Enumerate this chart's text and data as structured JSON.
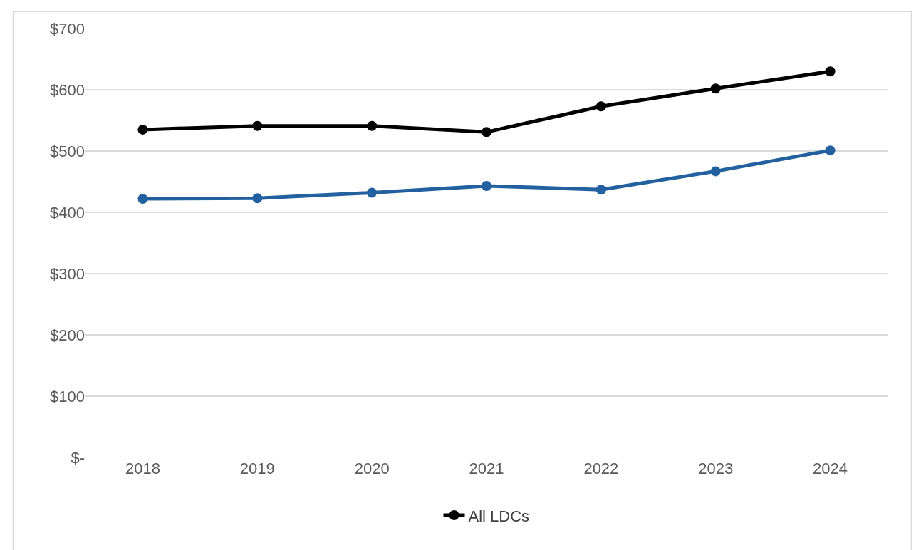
{
  "chart_data": {
    "type": "line",
    "categories": [
      "2018",
      "2019",
      "2020",
      "2021",
      "2022",
      "2023",
      "2024"
    ],
    "series": [
      {
        "name": "All LDCs",
        "color": "#000000",
        "values": [
          535,
          541,
          541,
          531,
          573,
          602,
          630
        ]
      },
      {
        "color": "#2360a0",
        "values": [
          422,
          423,
          432,
          443,
          437,
          467,
          501
        ]
      }
    ],
    "ylim": [
      0,
      700
    ],
    "yticks": [
      {
        "value": 0,
        "label": "$-"
      },
      {
        "value": 100,
        "label": "$100"
      },
      {
        "value": 200,
        "label": "$200"
      },
      {
        "value": 300,
        "label": "$300"
      },
      {
        "value": 400,
        "label": "$400"
      },
      {
        "value": 500,
        "label": "$500"
      },
      {
        "value": 600,
        "label": "$600"
      },
      {
        "value": 700,
        "label": "$700"
      }
    ],
    "grid": "y",
    "legend": "bottom",
    "marker": "circle",
    "line_style": "solid"
  }
}
